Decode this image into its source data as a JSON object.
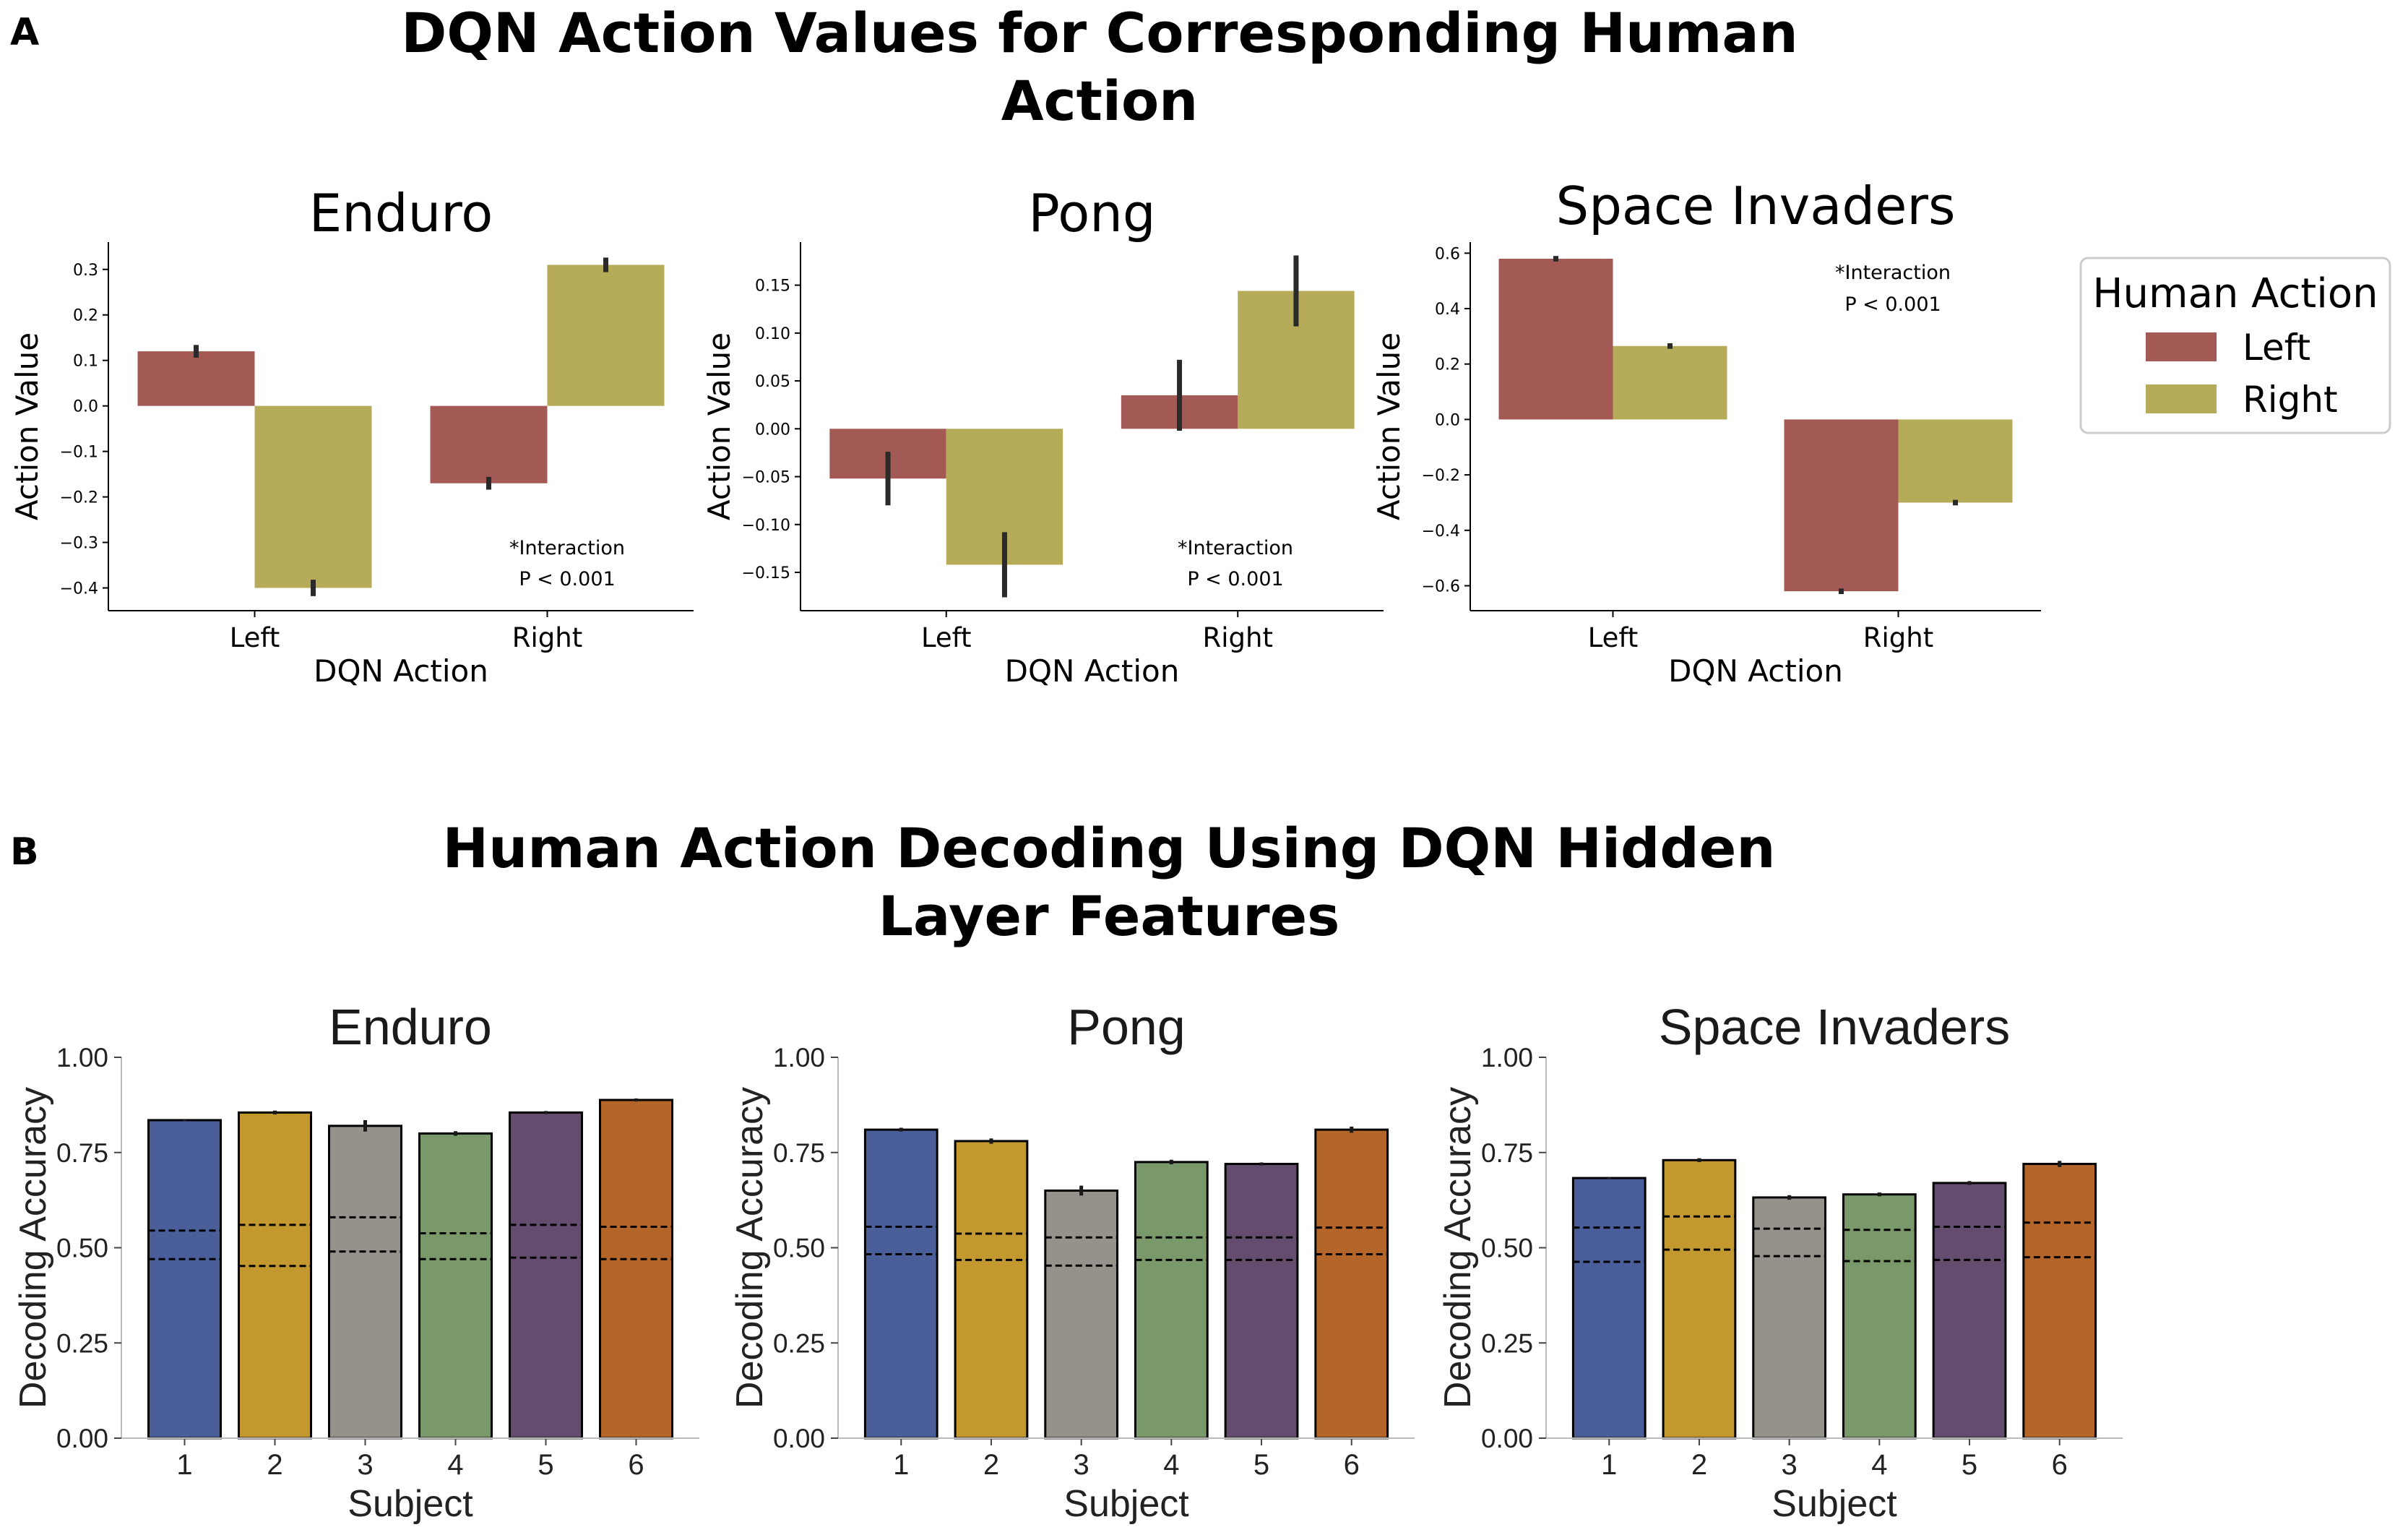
{
  "panel_a": {
    "letter": "A",
    "title_lines": [
      "DQN Action Values for Corresponding Human",
      "Action"
    ]
  },
  "panel_b": {
    "letter": "B",
    "title_lines": [
      "Human Action Decoding Using DQN Hidden",
      "Layer Features"
    ]
  },
  "legend": {
    "title": "Human Action",
    "entries": [
      {
        "label": "Left",
        "color": "#a35a55"
      },
      {
        "label": "Right",
        "color": "#b5ab58"
      }
    ]
  },
  "chart_data": [
    {
      "type": "bar",
      "panel": "A",
      "title": "Enduro",
      "xlabel": "DQN Action",
      "ylabel": "Action Value",
      "categories": [
        "Left",
        "Right"
      ],
      "series": [
        {
          "name": "Left",
          "values": [
            0.12,
            -0.17
          ],
          "errors": [
            0.014,
            0.014
          ]
        },
        {
          "name": "Right",
          "values": [
            -0.4,
            0.31
          ],
          "errors": [
            0.018,
            0.016
          ]
        }
      ],
      "ylim": [
        -0.45,
        0.36
      ],
      "yticks": [
        0.3,
        0.2,
        0.1,
        0.0,
        -0.1,
        -0.2,
        -0.3,
        -0.4
      ],
      "ytick_labels": [
        "0.3",
        "0.2",
        "0.1",
        "0.0",
        "−0.1",
        "−0.2",
        "−0.3",
        "−0.4"
      ],
      "annotation": [
        "*Interaction",
        "P < 0.001"
      ]
    },
    {
      "type": "bar",
      "panel": "A",
      "title": "Pong",
      "xlabel": "DQN Action",
      "ylabel": "Action Value",
      "categories": [
        "Left",
        "Right"
      ],
      "series": [
        {
          "name": "Left",
          "values": [
            -0.052,
            0.035
          ],
          "errors": [
            0.028,
            0.037
          ]
        },
        {
          "name": "Right",
          "values": [
            -0.142,
            0.144
          ],
          "errors": [
            0.034,
            0.037
          ]
        }
      ],
      "ylim": [
        -0.19,
        0.195
      ],
      "yticks": [
        0.15,
        0.1,
        0.05,
        0.0,
        -0.05,
        -0.1,
        -0.15
      ],
      "ytick_labels": [
        "0.15",
        "0.10",
        "0.05",
        "0.00",
        "−0.05",
        "−0.10",
        "−0.15"
      ],
      "annotation": [
        "*Interaction",
        "P < 0.001"
      ]
    },
    {
      "type": "bar",
      "panel": "A",
      "title": "Space Invaders",
      "xlabel": "DQN Action",
      "ylabel": "Action Value",
      "categories": [
        "Left",
        "Right"
      ],
      "series": [
        {
          "name": "Left",
          "values": [
            0.58,
            -0.62
          ],
          "errors": [
            0.01,
            0.01
          ]
        },
        {
          "name": "Right",
          "values": [
            0.265,
            -0.3
          ],
          "errors": [
            0.01,
            0.01
          ]
        }
      ],
      "ylim": [
        -0.69,
        0.64
      ],
      "yticks": [
        0.6,
        0.4,
        0.2,
        0.0,
        -0.2,
        -0.4,
        -0.6
      ],
      "ytick_labels": [
        "0.6",
        "0.4",
        "0.2",
        "0.0",
        "−0.2",
        "−0.4",
        "−0.6"
      ],
      "annotation": [
        "*Interaction",
        "P < 0.001"
      ]
    },
    {
      "type": "bar",
      "panel": "B",
      "title": "Enduro",
      "xlabel": "Subject",
      "ylabel": "Decoding Accuracy",
      "categories": [
        "1",
        "2",
        "3",
        "4",
        "5",
        "6"
      ],
      "values": [
        0.835,
        0.855,
        0.82,
        0.8,
        0.855,
        0.888
      ],
      "errors": [
        0.003,
        0.005,
        0.015,
        0.006,
        0.004,
        0.004
      ],
      "chance_upper": [
        0.545,
        0.56,
        0.58,
        0.538,
        0.56,
        0.555
      ],
      "chance_lower": [
        0.47,
        0.452,
        0.49,
        0.47,
        0.474,
        0.47
      ],
      "colors": [
        "#4a5f99",
        "#c3992f",
        "#94928a",
        "#7a996a",
        "#634c6e",
        "#b3652a"
      ],
      "ylim": [
        0,
        1.0
      ],
      "yticks": [
        0.0,
        0.25,
        0.5,
        0.75,
        1.0
      ],
      "ytick_labels": [
        "0.00",
        "0.25",
        "0.50",
        "0.75",
        "1.00"
      ]
    },
    {
      "type": "bar",
      "panel": "B",
      "title": "Pong",
      "xlabel": "Subject",
      "ylabel": "Decoding Accuracy",
      "categories": [
        "1",
        "2",
        "3",
        "4",
        "5",
        "6"
      ],
      "values": [
        0.81,
        0.78,
        0.65,
        0.725,
        0.72,
        0.81
      ],
      "errors": [
        0.005,
        0.007,
        0.013,
        0.006,
        0.004,
        0.008
      ],
      "chance_upper": [
        0.555,
        0.537,
        0.527,
        0.527,
        0.527,
        0.553
      ],
      "chance_lower": [
        0.483,
        0.468,
        0.453,
        0.468,
        0.468,
        0.483
      ],
      "colors": [
        "#4a5f99",
        "#c3992f",
        "#94928a",
        "#7a996a",
        "#634c6e",
        "#b3652a"
      ],
      "ylim": [
        0,
        1.0
      ],
      "yticks": [
        0.0,
        0.25,
        0.5,
        0.75,
        1.0
      ],
      "ytick_labels": [
        "0.00",
        "0.25",
        "0.50",
        "0.75",
        "1.00"
      ]
    },
    {
      "type": "bar",
      "panel": "B",
      "title": "Space Invaders",
      "xlabel": "Subject",
      "ylabel": "Decoding Accuracy",
      "categories": [
        "1",
        "2",
        "3",
        "4",
        "5",
        "6"
      ],
      "values": [
        0.683,
        0.73,
        0.632,
        0.64,
        0.67,
        0.72
      ],
      "errors": [
        0.003,
        0.005,
        0.006,
        0.005,
        0.005,
        0.008
      ],
      "chance_upper": [
        0.553,
        0.582,
        0.55,
        0.547,
        0.555,
        0.566
      ],
      "chance_lower": [
        0.463,
        0.495,
        0.478,
        0.465,
        0.468,
        0.475
      ],
      "colors": [
        "#4a5f99",
        "#c3992f",
        "#94928a",
        "#7a996a",
        "#634c6e",
        "#b3652a"
      ],
      "ylim": [
        0,
        1.0
      ],
      "yticks": [
        0.0,
        0.25,
        0.5,
        0.75,
        1.0
      ],
      "ytick_labels": [
        "0.00",
        "0.25",
        "0.50",
        "0.75",
        "1.00"
      ]
    }
  ]
}
